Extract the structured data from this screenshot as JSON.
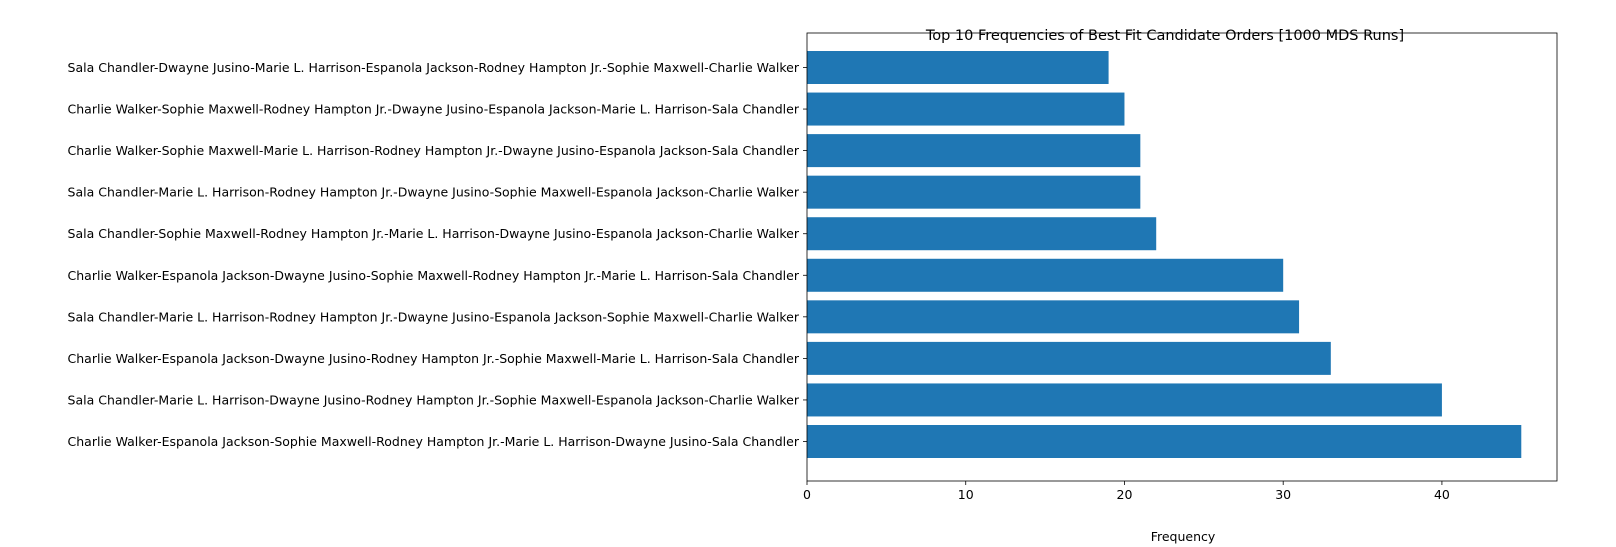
{
  "chart_data": {
    "type": "bar",
    "orientation": "horizontal",
    "title": "Top 10 Frequencies of Best Fit Candidate Orders [1000 MDS Runs]",
    "xlabel": "Frequency",
    "ylabel": "",
    "xlim": [
      0,
      47.25
    ],
    "xticks": [
      0,
      10,
      20,
      30,
      40
    ],
    "xtick_labels": [
      "0",
      "10",
      "20",
      "30",
      "40"
    ],
    "bar_color": "#1f77b4",
    "grid": false,
    "categories": [
      "Sala Chandler-Dwayne Jusino-Marie L. Harrison-Espanola Jackson-Rodney Hampton Jr.-Sophie Maxwell-Charlie Walker",
      "Charlie Walker-Sophie Maxwell-Rodney Hampton Jr.-Dwayne Jusino-Espanola Jackson-Marie L. Harrison-Sala Chandler",
      "Charlie Walker-Sophie Maxwell-Marie L. Harrison-Rodney Hampton Jr.-Dwayne Jusino-Espanola Jackson-Sala Chandler",
      "Sala Chandler-Marie L. Harrison-Rodney Hampton Jr.-Dwayne Jusino-Sophie Maxwell-Espanola Jackson-Charlie Walker",
      "Sala Chandler-Sophie Maxwell-Rodney Hampton Jr.-Marie L. Harrison-Dwayne Jusino-Espanola Jackson-Charlie Walker",
      "Charlie Walker-Espanola Jackson-Dwayne Jusino-Sophie Maxwell-Rodney Hampton Jr.-Marie L. Harrison-Sala Chandler",
      "Sala Chandler-Marie L. Harrison-Rodney Hampton Jr.-Dwayne Jusino-Espanola Jackson-Sophie Maxwell-Charlie Walker",
      "Charlie Walker-Espanola Jackson-Dwayne Jusino-Rodney Hampton Jr.-Sophie Maxwell-Marie L. Harrison-Sala Chandler",
      "Sala Chandler-Marie L. Harrison-Dwayne Jusino-Rodney Hampton Jr.-Sophie Maxwell-Espanola Jackson-Charlie Walker",
      "Charlie Walker-Espanola Jackson-Sophie Maxwell-Rodney Hampton Jr.-Marie L. Harrison-Dwayne Jusino-Sala Chandler"
    ],
    "values": [
      19,
      20,
      21,
      21,
      22,
      30,
      31,
      33,
      40,
      45
    ]
  }
}
